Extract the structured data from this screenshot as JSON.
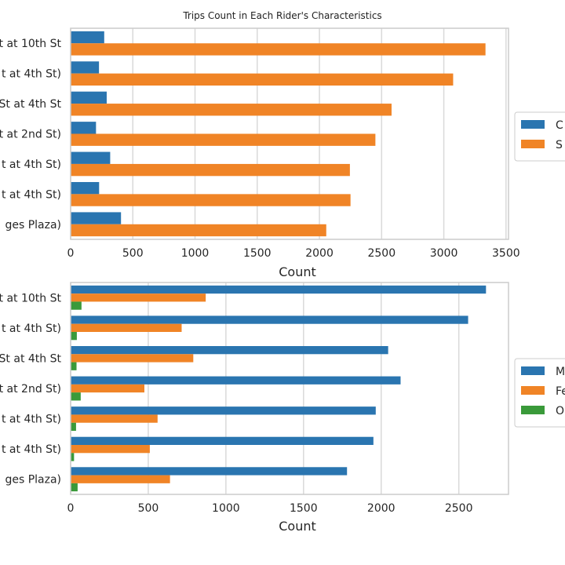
{
  "title": "Trips Count in Each Rider's Characteristics",
  "colors": {
    "blue": "#2a75b0",
    "orange": "#f08426",
    "green": "#3a9a3a",
    "grid": "#d9d9d9",
    "frame": "#cccccc"
  },
  "chart_data": [
    {
      "type": "bar",
      "orientation": "horizontal",
      "categories": [
        "t at 10th St",
        "t at 4th St)",
        "St at 4th St",
        "t at 2nd St)",
        "t at 4th St)",
        "t at 4th St)",
        "ges Plaza)"
      ],
      "series": [
        {
          "name": "C",
          "color": "#2a75b0",
          "values": [
            270,
            228,
            290,
            204,
            318,
            229,
            405
          ]
        },
        {
          "name": "S",
          "color": "#f08426",
          "values": [
            3335,
            3075,
            2580,
            2450,
            2245,
            2250,
            2055
          ]
        }
      ],
      "xlabel": "Count",
      "xlim": [
        0,
        3520
      ],
      "xticks": [
        0,
        500,
        1000,
        1500,
        2000,
        2500,
        3000,
        3500
      ],
      "grid": true,
      "legend": "right"
    },
    {
      "type": "bar",
      "orientation": "horizontal",
      "categories": [
        "t at 10th St",
        "t at 4th St)",
        "St at 4th St",
        "t at 2nd St)",
        "t at 4th St)",
        "t at 4th St)",
        "ges Plaza)"
      ],
      "series": [
        {
          "name": "M",
          "color": "#2a75b0",
          "values": [
            2675,
            2560,
            2045,
            2125,
            1965,
            1950,
            1780
          ]
        },
        {
          "name": "Fe",
          "color": "#f08426",
          "values": [
            870,
            715,
            790,
            475,
            560,
            510,
            640
          ]
        },
        {
          "name": "O",
          "color": "#3a9a3a",
          "values": [
            70,
            40,
            38,
            65,
            35,
            22,
            45
          ]
        }
      ],
      "xlabel": "Count",
      "xlim": [
        0,
        2820
      ],
      "xticks": [
        0,
        500,
        1000,
        1500,
        2000,
        2500
      ],
      "grid": true,
      "legend": "right"
    }
  ]
}
